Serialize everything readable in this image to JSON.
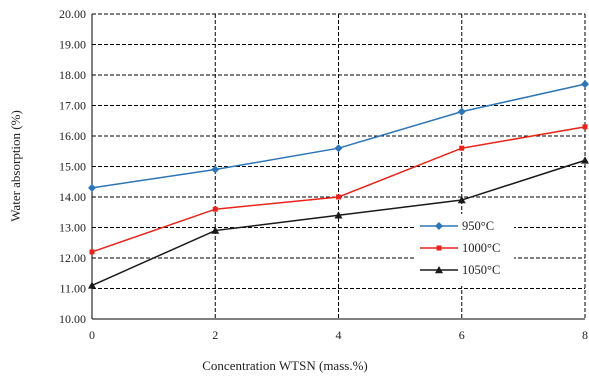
{
  "chart_data": {
    "type": "line",
    "xlabel": "Concentration  WTSN (mass.%)",
    "ylabel": "Water absorption (%)",
    "x": [
      0,
      2,
      4,
      6,
      8
    ],
    "xlim": [
      0,
      8
    ],
    "ylim": [
      10,
      20
    ],
    "x_ticks": [
      "0",
      "2",
      "4",
      "6",
      "8"
    ],
    "y_ticks": [
      "10.00",
      "11.00",
      "12.00",
      "13.00",
      "14.00",
      "15.00",
      "16.00",
      "17.00",
      "18.00",
      "19.00",
      "20.00"
    ],
    "grid": true,
    "legend_position": "right",
    "series": [
      {
        "name": "950°C",
        "values": [
          14.3,
          14.9,
          15.6,
          16.8,
          17.7
        ],
        "color": "#2e75b6",
        "marker": "diamond"
      },
      {
        "name": "1000°C",
        "values": [
          12.2,
          13.6,
          14.0,
          15.6,
          16.3
        ],
        "color": "#e8251b",
        "marker": "square"
      },
      {
        "name": "1050°C",
        "values": [
          11.1,
          12.9,
          13.4,
          13.9,
          15.2
        ],
        "color": "#1a1a1a",
        "marker": "triangle"
      }
    ]
  }
}
